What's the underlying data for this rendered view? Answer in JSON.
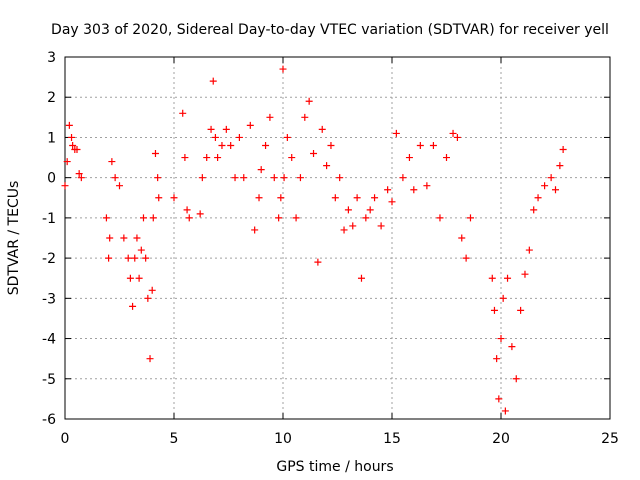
{
  "chart_data": {
    "type": "scatter",
    "title": "Day 303 of 2020, Sidereal Day-to-day VTEC variation (SDTVAR) for receiver yell",
    "xlabel": "GPS time / hours",
    "ylabel": "SDTVAR / TECUs",
    "xlim": [
      0,
      25
    ],
    "ylim": [
      -6,
      3
    ],
    "xticks": [
      "0",
      "5",
      "10",
      "15",
      "20",
      "25"
    ],
    "yticks": [
      "3",
      "2",
      "1",
      "0",
      "-1",
      "-2",
      "-3",
      "-4",
      "-5",
      "-6"
    ],
    "grid": true,
    "marker": "+",
    "colors": {
      "series": "#ff0000",
      "grid": "#a0a0a0",
      "axes": "#000000"
    },
    "series": [
      {
        "name": "SDTVAR",
        "color": "#ff0000",
        "x": [
          0.0,
          0.1,
          0.2,
          0.3,
          0.35,
          0.45,
          0.55,
          0.65,
          0.75,
          1.9,
          2.0,
          2.05,
          2.15,
          2.3,
          2.5,
          2.7,
          2.9,
          3.0,
          3.1,
          3.2,
          3.3,
          3.4,
          3.5,
          3.6,
          3.7,
          3.8,
          3.9,
          4.0,
          4.05,
          4.15,
          4.25,
          4.3,
          5.0,
          5.4,
          5.5,
          5.6,
          5.7,
          6.2,
          6.3,
          6.5,
          6.7,
          6.8,
          6.9,
          7.0,
          7.2,
          7.4,
          7.6,
          7.8,
          8.0,
          8.2,
          8.5,
          8.7,
          8.9,
          9.0,
          9.2,
          9.4,
          9.6,
          9.8,
          9.9,
          10.0,
          10.05,
          10.2,
          10.4,
          10.6,
          10.8,
          11.0,
          11.2,
          11.4,
          11.6,
          11.8,
          12.0,
          12.2,
          12.4,
          12.6,
          12.8,
          13.0,
          13.2,
          13.4,
          13.6,
          13.8,
          14.0,
          14.2,
          14.5,
          14.8,
          15.0,
          15.2,
          15.5,
          15.8,
          16.0,
          16.3,
          16.6,
          16.9,
          17.2,
          17.5,
          17.8,
          18.0,
          18.2,
          18.4,
          18.6,
          19.6,
          19.7,
          19.8,
          19.9,
          20.0,
          20.1,
          20.2,
          20.3,
          20.5,
          20.7,
          20.9,
          21.1,
          21.3,
          21.5,
          21.7,
          22.0,
          22.3,
          22.5,
          22.7,
          22.85
        ],
        "y": [
          -0.2,
          0.4,
          1.3,
          1.0,
          0.8,
          0.7,
          0.7,
          0.1,
          0.0,
          -1.0,
          -2.0,
          -1.5,
          0.4,
          0.0,
          -0.2,
          -1.5,
          -2.0,
          -2.5,
          -3.2,
          -2.0,
          -1.5,
          -2.5,
          -1.8,
          -1.0,
          -2.0,
          -3.0,
          -4.5,
          -2.8,
          -1.0,
          0.6,
          0.0,
          -0.5,
          -0.5,
          1.6,
          0.5,
          -0.8,
          -1.0,
          -0.9,
          0.0,
          0.5,
          1.2,
          2.4,
          1.0,
          0.5,
          0.8,
          1.2,
          0.8,
          0.0,
          1.0,
          0.0,
          1.3,
          -1.3,
          -0.5,
          0.2,
          0.8,
          1.5,
          0.0,
          -1.0,
          -0.5,
          2.7,
          0.0,
          1.0,
          0.5,
          -1.0,
          0.0,
          1.5,
          1.9,
          0.6,
          -2.1,
          1.2,
          0.3,
          0.8,
          -0.5,
          0.0,
          -1.3,
          -0.8,
          -1.2,
          -0.5,
          -2.5,
          -1.0,
          -0.8,
          -0.5,
          -1.2,
          -0.3,
          -0.6,
          1.1,
          0.0,
          0.5,
          -0.3,
          0.8,
          -0.2,
          0.8,
          -1.0,
          0.5,
          1.1,
          1.0,
          -1.5,
          -2.0,
          -1.0,
          -2.5,
          -3.3,
          -4.5,
          -5.5,
          -4.0,
          -3.0,
          -5.8,
          -2.5,
          -4.2,
          -5.0,
          -3.3,
          -2.4,
          -1.8,
          -0.8,
          -0.5,
          -0.2,
          0.0,
          -0.3,
          0.3,
          0.7
        ]
      }
    ]
  }
}
